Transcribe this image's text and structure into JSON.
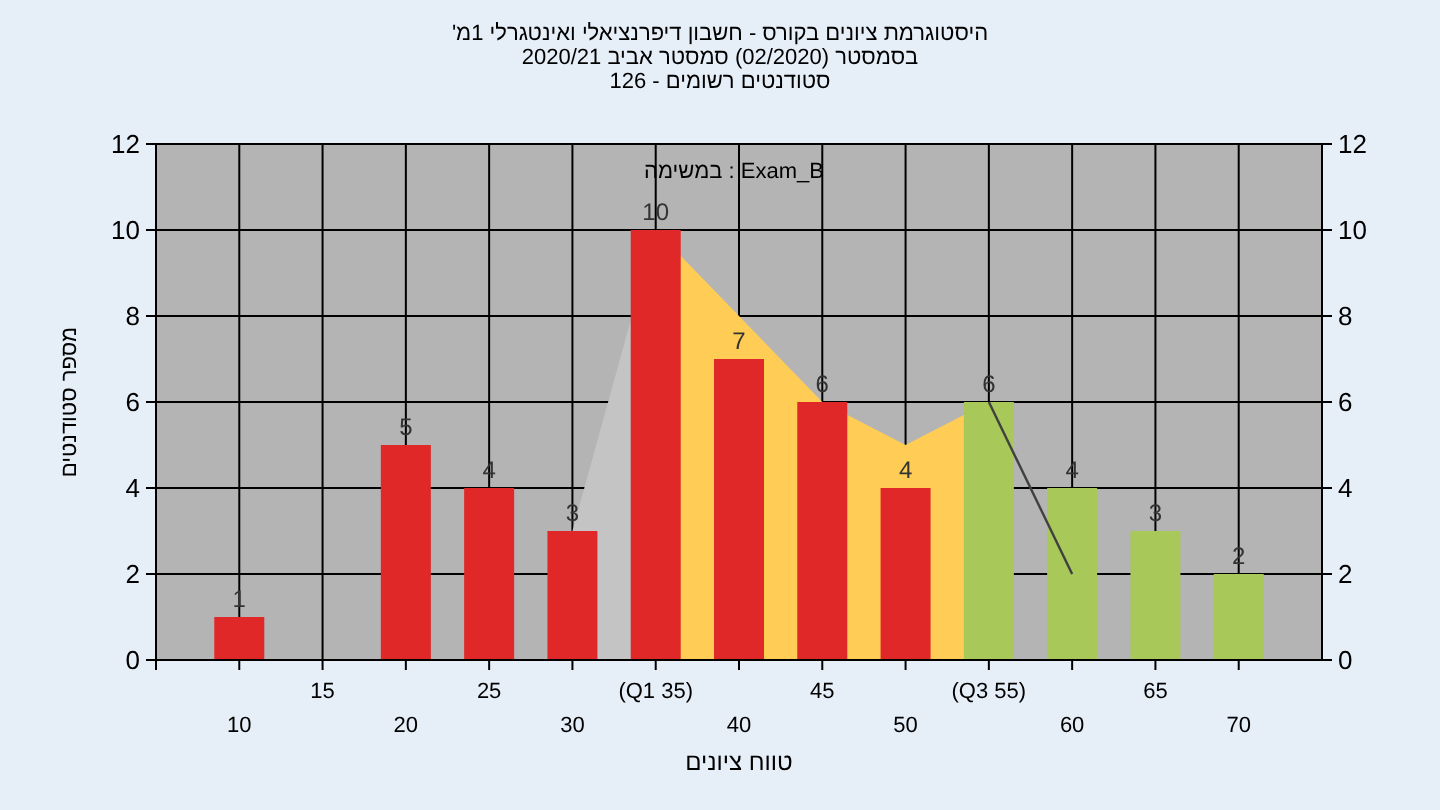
{
  "chart_data": {
    "type": "bar",
    "title": "היסטוגרמת ציונים בקורס - חשבון דיפרנציאלי ואינטגרלי 1מ'",
    "subtitle": "בסמסטר (02/2020) סמסטר אביב 2020/21",
    "annotations": [
      "סטודנטים רשומים - 126",
      "במשימה : Exam_B"
    ],
    "xlabel": "טווח ציונים",
    "ylabel": "מספר סטודנטים",
    "categories": [
      "10",
      "15",
      "20",
      "25",
      "30",
      "(Q1 35)",
      "40",
      "45",
      "50",
      "(Q3 55)",
      "60",
      "65",
      "70"
    ],
    "series": [
      {
        "type": "area",
        "color": "#c4c4c4",
        "values": [
          null,
          null,
          null,
          null,
          3,
          10,
          null,
          null,
          null,
          null,
          null,
          null,
          null
        ]
      },
      {
        "type": "area",
        "color": "#ffcc55",
        "values": [
          null,
          null,
          null,
          null,
          null,
          10,
          8,
          6,
          5,
          6,
          null,
          null,
          null
        ]
      },
      {
        "type": "line",
        "color": "#404040",
        "values": [
          null,
          null,
          null,
          null,
          null,
          null,
          null,
          null,
          null,
          6,
          2,
          null,
          null
        ]
      },
      {
        "type": "bar",
        "values": [
          1,
          0,
          5,
          4,
          3,
          10,
          7,
          6,
          4,
          6,
          4,
          3,
          2
        ],
        "colors": [
          "#e02828",
          "#e02828",
          "#e02828",
          "#e02828",
          "#e02828",
          "#e02828",
          "#e02828",
          "#e02828",
          "#e02828",
          "#a8c85a",
          "#a8c85a",
          "#a8c85a",
          "#a8c85a"
        ],
        "value_labels": [
          "1",
          null,
          "5",
          "4",
          "3",
          "10",
          "7",
          "6",
          "4",
          "6",
          "4",
          "3",
          "2"
        ]
      }
    ],
    "ylim": [
      0,
      12
    ],
    "yticks": [
      0,
      2,
      4,
      6,
      8,
      10,
      12
    ],
    "y2lim": [
      0,
      12
    ],
    "y2ticks": [
      0,
      2,
      4,
      6,
      8,
      10,
      12
    ],
    "grid": true
  }
}
